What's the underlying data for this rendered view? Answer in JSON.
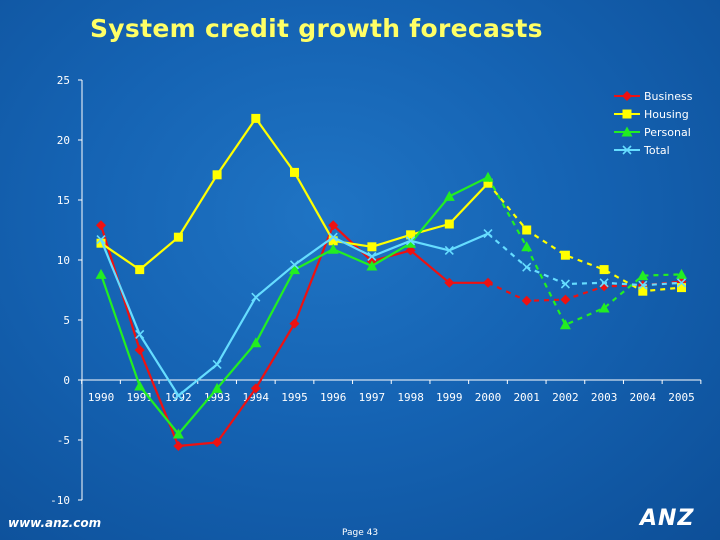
{
  "page": {
    "title": "System credit growth forecasts",
    "footer_url": "www.anz.com",
    "page_label": "Page 43",
    "logo_text": "ANZ"
  },
  "colors": {
    "axis": "#ffffff",
    "text": "#ffffff",
    "title": "#ffff66"
  },
  "chart_data": {
    "type": "line",
    "title": "System credit growth forecasts",
    "xlabel": "",
    "ylabel": "",
    "ylim": [
      -10,
      25
    ],
    "yticks": [
      "25",
      "20",
      "15",
      "10",
      "5",
      "0",
      "-5",
      "-10"
    ],
    "ytick_values": [
      25,
      20,
      15,
      10,
      5,
      0,
      -5,
      -10
    ],
    "categories": [
      "1990",
      "1991",
      "1992",
      "1993",
      "1994",
      "1995",
      "1996",
      "1997",
      "1998",
      "1999",
      "2000",
      "2001",
      "2002",
      "2003",
      "2004",
      "2005"
    ],
    "forecast_from": "2000",
    "grid": false,
    "legend_position": "top-right",
    "series": [
      {
        "name": "Business",
        "color": "#ee1111",
        "marker": "diamond",
        "values": [
          12.9,
          2.5,
          -5.5,
          -5.2,
          -0.7,
          4.7,
          12.9,
          9.9,
          10.8,
          8.1,
          8.1,
          6.6,
          6.7,
          7.8,
          7.9,
          8.2
        ]
      },
      {
        "name": "Housing",
        "color": "#ffff00",
        "marker": "square",
        "values": [
          11.4,
          9.2,
          11.9,
          17.1,
          21.8,
          17.3,
          11.6,
          11.1,
          12.1,
          13.0,
          16.4,
          12.5,
          10.4,
          9.2,
          7.4,
          7.7
        ]
      },
      {
        "name": "Personal",
        "color": "#22ee22",
        "marker": "triangle",
        "values": [
          8.8,
          -0.5,
          -4.5,
          -0.7,
          3.1,
          9.2,
          10.9,
          9.5,
          11.4,
          15.3,
          16.9,
          11.1,
          4.6,
          6.0,
          8.7,
          8.8
        ]
      },
      {
        "name": "Total",
        "color": "#66ddff",
        "marker": "x",
        "values": [
          11.7,
          3.8,
          -1.3,
          1.3,
          6.9,
          9.6,
          11.9,
          10.3,
          11.6,
          10.8,
          12.2,
          9.4,
          8.0,
          8.1,
          7.9,
          8.1
        ]
      }
    ]
  }
}
